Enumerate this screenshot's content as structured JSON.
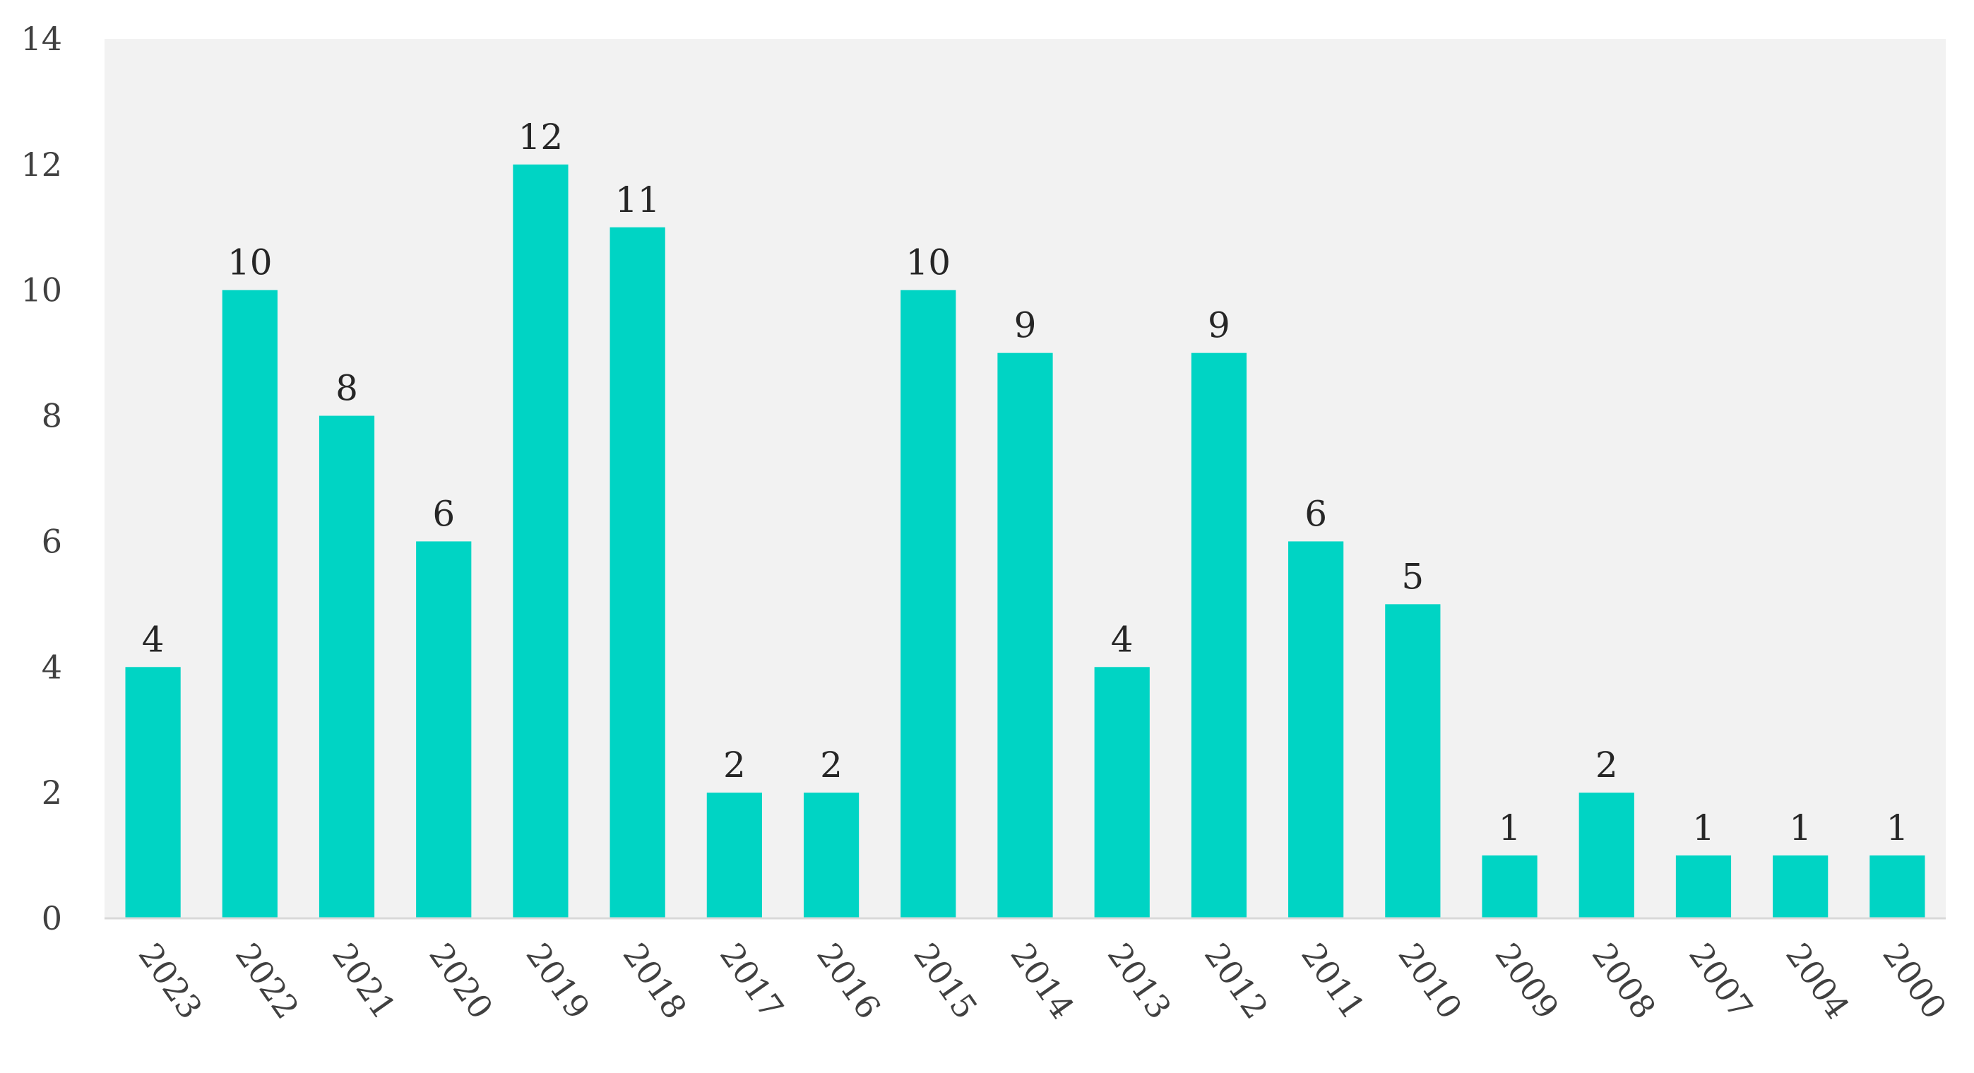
{
  "chart_data": {
    "type": "bar",
    "categories": [
      "2023",
      "2022",
      "2021",
      "2020",
      "2019",
      "2018",
      "2017",
      "2016",
      "2015",
      "2014",
      "2013",
      "2012",
      "2011",
      "2010",
      "2009",
      "2008",
      "2007",
      "2004",
      "2000"
    ],
    "values": [
      4,
      10,
      8,
      6,
      12,
      11,
      2,
      2,
      10,
      9,
      4,
      9,
      6,
      5,
      1,
      2,
      1,
      1,
      1
    ],
    "ylim": [
      0,
      14
    ],
    "yticks": [
      0,
      2,
      4,
      6,
      8,
      10,
      12,
      14
    ],
    "grid": false,
    "bar_color": "#00d4c4",
    "plot_background": "#f2f2f2",
    "x_tick_rotation": "diagonal",
    "data_labels": true
  }
}
